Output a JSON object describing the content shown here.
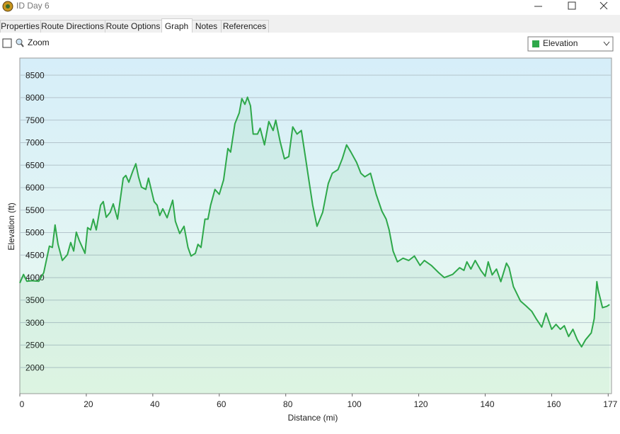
{
  "window": {
    "title": "ID Day 6"
  },
  "tabs": [
    "Properties",
    "Route Directions",
    "Route Options",
    "Graph",
    "Notes",
    "References"
  ],
  "toolbar": {
    "zoom_label": "Zoom"
  },
  "chart_data": {
    "type": "line",
    "xlabel": "Distance  (mi)",
    "ylabel": "Elevation (ft)",
    "x": [
      0,
      1.1,
      2.1,
      3.6,
      5.7,
      7.2,
      8.9,
      9.8,
      10.6,
      11.5,
      12.8,
      14.3,
      15.3,
      16.2,
      17,
      17.9,
      19.6,
      20.4,
      21.3,
      22.1,
      23,
      24.3,
      25.1,
      26,
      27.2,
      28.1,
      29.4,
      31.1,
      31.9,
      32.8,
      34,
      34.9,
      35.7,
      36.6,
      37.9,
      38.7,
      40.4,
      41.3,
      42.1,
      43,
      44.3,
      46,
      46.8,
      48.1,
      49.4,
      50.6,
      51.5,
      52.8,
      53.6,
      54.5,
      55.7,
      56.6,
      57.4,
      58.7,
      60,
      61.3,
      62.6,
      63.4,
      64.7,
      66,
      66.8,
      67.7,
      68.5,
      69.4,
      70.2,
      71.5,
      72.3,
      73.6,
      74.9,
      76.2,
      77,
      78.3,
      79.6,
      80.9,
      82.1,
      83.4,
      84.7,
      86,
      86.8,
      88.1,
      89.4,
      91.1,
      92.8,
      94,
      95.7,
      97,
      98.3,
      99.6,
      101.3,
      102.6,
      103.8,
      105.5,
      107.2,
      108.9,
      110.2,
      111.1,
      112.3,
      113.6,
      115.3,
      117,
      118.7,
      120.4,
      121.7,
      123.8,
      126,
      127.7,
      130.2,
      132.3,
      133.6,
      134.5,
      135.7,
      137,
      138.7,
      140,
      140.9,
      142.1,
      143.4,
      144.7,
      146.4,
      147.2,
      148.5,
      150.6,
      152.3,
      154,
      155.3,
      157,
      158.3,
      160,
      161.3,
      162.6,
      163.8,
      165.1,
      166.4,
      167.7,
      169,
      170.2,
      171.9,
      172.8,
      173.6,
      174,
      175.3,
      176.6,
      177.4
    ],
    "series": [
      {
        "name": "Elevation",
        "color": "#2ea84a",
        "values": [
          3880,
          4070,
          3920,
          3930,
          3920,
          4110,
          4700,
          4670,
          5170,
          4740,
          4380,
          4510,
          4780,
          4590,
          5010,
          4820,
          4540,
          5110,
          5060,
          5300,
          5060,
          5610,
          5690,
          5340,
          5450,
          5640,
          5300,
          6210,
          6270,
          6120,
          6370,
          6530,
          6240,
          6010,
          5960,
          6210,
          5690,
          5610,
          5380,
          5530,
          5330,
          5720,
          5250,
          4980,
          5140,
          4670,
          4480,
          4540,
          4740,
          4670,
          5300,
          5300,
          5610,
          5960,
          5850,
          6170,
          6870,
          6790,
          7420,
          7660,
          7980,
          7850,
          8010,
          7820,
          7190,
          7190,
          7320,
          6950,
          7470,
          7270,
          7500,
          7030,
          6640,
          6690,
          7350,
          7190,
          7270,
          6640,
          6240,
          5610,
          5140,
          5450,
          6090,
          6320,
          6400,
          6640,
          6950,
          6790,
          6560,
          6320,
          6240,
          6320,
          5850,
          5480,
          5300,
          5060,
          4590,
          4350,
          4430,
          4380,
          4480,
          4270,
          4380,
          4270,
          4110,
          4000,
          4070,
          4220,
          4160,
          4350,
          4190,
          4380,
          4160,
          4030,
          4350,
          4060,
          4190,
          3910,
          4320,
          4220,
          3800,
          3480,
          3370,
          3250,
          3090,
          2900,
          3210,
          2850,
          2960,
          2850,
          2930,
          2690,
          2850,
          2620,
          2460,
          2620,
          2770,
          3090,
          3910,
          3720,
          3330,
          3360,
          3400
        ]
      }
    ],
    "xlim": [
      0,
      178
    ],
    "ylim": [
      1420,
      8880
    ],
    "xticks": [
      0,
      20,
      40,
      60,
      80,
      100,
      120,
      140,
      160,
      177
    ],
    "yticks": [
      2000,
      2500,
      3000,
      3500,
      4000,
      4500,
      5000,
      5500,
      6000,
      6500,
      7000,
      7500,
      8000,
      8500
    ],
    "grid": true
  }
}
